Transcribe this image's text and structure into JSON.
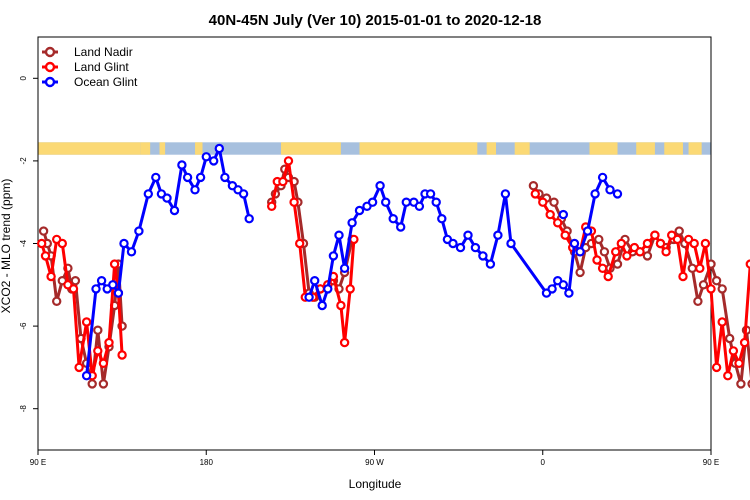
{
  "chart_data": {
    "type": "line",
    "title": "40N-45N July (Ver 10)   2015-01-01 to 2020-12-18",
    "xlabel": "Longitude",
    "ylabel": "XCO2 - MLO trend (ppm)",
    "xlim": [
      90,
      450
    ],
    "ylim": [
      -9,
      1
    ],
    "x_ticks": [
      {
        "value": 90,
        "label": "90 E"
      },
      {
        "value": 180,
        "label": "180"
      },
      {
        "value": 270,
        "label": "90 W"
      },
      {
        "value": 360,
        "label": "0"
      },
      {
        "value": 450,
        "label": "90 E"
      },
      {
        "value": 540,
        "label": "180"
      }
    ],
    "y_ticks": [
      {
        "value": 0,
        "label": "0"
      },
      {
        "value": -2,
        "label": "-2"
      },
      {
        "value": -4,
        "label": "-4"
      },
      {
        "value": -6,
        "label": "-6"
      },
      {
        "value": -8,
        "label": "-8"
      }
    ],
    "grid": false,
    "legend_position": "top-left",
    "land_ocean_band": {
      "y_top": -1.55,
      "y_bottom": -1.85,
      "land_color": "#fbd975",
      "ocean_color": "#a7c0de"
    },
    "series": [
      {
        "name": "Land Nadir",
        "color": "#a52a2a",
        "points": [
          [
            93,
            -3.7
          ],
          [
            95,
            -4.0
          ],
          [
            97,
            -4.3
          ],
          [
            100,
            -5.4
          ],
          [
            103,
            -4.9
          ],
          [
            106,
            -4.6
          ],
          [
            108,
            -5.1
          ],
          [
            110,
            -4.9
          ],
          [
            113,
            -6.3
          ],
          [
            116,
            -6.9
          ],
          [
            119,
            -7.4
          ],
          [
            122,
            -6.1
          ],
          [
            125,
            -7.4
          ],
          [
            128,
            -6.5
          ],
          [
            131,
            -5.5
          ],
          [
            133,
            -4.5
          ],
          [
            135,
            -6.0
          ],
          [
            215,
            -3.0
          ],
          [
            217,
            -2.8
          ],
          [
            220,
            -2.6
          ],
          [
            222,
            -2.2
          ],
          [
            224,
            -2.4
          ],
          [
            227,
            -2.5
          ],
          [
            229,
            -3.0
          ],
          [
            232,
            -4.0
          ],
          [
            235,
            -5.2
          ],
          [
            238,
            -5.3
          ],
          [
            241,
            -5.1
          ],
          [
            245,
            -5.0
          ],
          [
            248,
            -4.9
          ],
          [
            251,
            -5.1
          ],
          [
            254,
            -4.7
          ],
          [
            258,
            -3.9
          ],
          [
            355,
            -2.6
          ],
          [
            358,
            -2.8
          ],
          [
            362,
            -2.9
          ],
          [
            366,
            -3.0
          ],
          [
            370,
            -3.4
          ],
          [
            373,
            -3.7
          ],
          [
            377,
            -4.2
          ],
          [
            380,
            -4.7
          ],
          [
            383,
            -4.1
          ],
          [
            386,
            -4.0
          ],
          [
            390,
            -3.9
          ],
          [
            393,
            -4.2
          ],
          [
            396,
            -4.6
          ],
          [
            400,
            -4.5
          ],
          [
            404,
            -3.9
          ],
          [
            408,
            -4.2
          ],
          [
            412,
            -4.2
          ],
          [
            416,
            -4.3
          ],
          [
            420,
            -3.8
          ],
          [
            423,
            -4.0
          ],
          [
            426,
            -4.1
          ],
          [
            430,
            -3.9
          ],
          [
            433,
            -3.7
          ],
          [
            436,
            -4.0
          ],
          [
            440,
            -4.6
          ],
          [
            443,
            -5.4
          ],
          [
            446,
            -5.0
          ],
          [
            450,
            -4.5
          ],
          [
            453,
            -4.9
          ],
          [
            456,
            -5.1
          ],
          [
            460,
            -6.3
          ],
          [
            463,
            -6.9
          ],
          [
            466,
            -7.4
          ],
          [
            469,
            -6.1
          ],
          [
            472,
            -7.4
          ],
          [
            475,
            -6.5
          ],
          [
            478,
            -5.5
          ],
          [
            481,
            -4.5
          ],
          [
            484,
            -6.0
          ]
        ]
      },
      {
        "name": "Land Glint",
        "color": "#ff0000",
        "points": [
          [
            92,
            -4.0
          ],
          [
            94,
            -4.3
          ],
          [
            97,
            -4.8
          ],
          [
            100,
            -3.9
          ],
          [
            103,
            -4.0
          ],
          [
            106,
            -5.0
          ],
          [
            109,
            -5.1
          ],
          [
            112,
            -7.0
          ],
          [
            116,
            -5.9
          ],
          [
            119,
            -7.2
          ],
          [
            122,
            -6.6
          ],
          [
            125,
            -6.9
          ],
          [
            128,
            -6.4
          ],
          [
            131,
            -4.5
          ],
          [
            133,
            -5.2
          ],
          [
            135,
            -6.7
          ],
          [
            215,
            -3.1
          ],
          [
            218,
            -2.5
          ],
          [
            221,
            -2.5
          ],
          [
            224,
            -2.0
          ],
          [
            227,
            -3.0
          ],
          [
            230,
            -4.0
          ],
          [
            233,
            -5.3
          ],
          [
            237,
            -5.3
          ],
          [
            241,
            -5.1
          ],
          [
            245,
            -5.0
          ],
          [
            248,
            -4.8
          ],
          [
            252,
            -5.5
          ],
          [
            254,
            -6.4
          ],
          [
            257,
            -5.1
          ],
          [
            259,
            -3.9
          ],
          [
            356,
            -2.8
          ],
          [
            360,
            -3.0
          ],
          [
            364,
            -3.3
          ],
          [
            368,
            -3.5
          ],
          [
            372,
            -3.8
          ],
          [
            376,
            -4.1
          ],
          [
            380,
            -4.2
          ],
          [
            383,
            -3.6
          ],
          [
            386,
            -3.7
          ],
          [
            389,
            -4.4
          ],
          [
            392,
            -4.6
          ],
          [
            395,
            -4.8
          ],
          [
            399,
            -4.2
          ],
          [
            402,
            -4.0
          ],
          [
            405,
            -4.3
          ],
          [
            409,
            -4.1
          ],
          [
            412,
            -4.2
          ],
          [
            416,
            -4.0
          ],
          [
            420,
            -3.8
          ],
          [
            423,
            -4.0
          ],
          [
            426,
            -4.2
          ],
          [
            429,
            -3.8
          ],
          [
            432,
            -3.9
          ],
          [
            435,
            -4.8
          ],
          [
            438,
            -3.9
          ],
          [
            441,
            -4.0
          ],
          [
            444,
            -4.6
          ],
          [
            447,
            -4.0
          ],
          [
            450,
            -5.1
          ],
          [
            453,
            -7.0
          ],
          [
            456,
            -5.9
          ],
          [
            459,
            -7.2
          ],
          [
            462,
            -6.6
          ],
          [
            465,
            -6.9
          ],
          [
            468,
            -6.4
          ],
          [
            471,
            -4.5
          ],
          [
            474,
            -5.2
          ],
          [
            477,
            -6.7
          ]
        ]
      },
      {
        "name": "Ocean Glint",
        "color": "#0000ff",
        "points": [
          [
            116,
            -7.2
          ],
          [
            121,
            -5.1
          ],
          [
            124,
            -4.9
          ],
          [
            127,
            -5.1
          ],
          [
            130,
            -5.0
          ],
          [
            133,
            -5.2
          ],
          [
            136,
            -4.0
          ],
          [
            140,
            -4.2
          ],
          [
            144,
            -3.7
          ],
          [
            149,
            -2.8
          ],
          [
            153,
            -2.4
          ],
          [
            156,
            -2.8
          ],
          [
            159,
            -2.9
          ],
          [
            163,
            -3.2
          ],
          [
            167,
            -2.1
          ],
          [
            170,
            -2.4
          ],
          [
            174,
            -2.7
          ],
          [
            177,
            -2.4
          ],
          [
            180,
            -1.9
          ],
          [
            184,
            -2.0
          ],
          [
            187,
            -1.7
          ],
          [
            190,
            -2.4
          ],
          [
            194,
            -2.6
          ],
          [
            197,
            -2.7
          ],
          [
            200,
            -2.8
          ],
          [
            203,
            -3.4
          ],
          [
            235,
            -5.3
          ],
          [
            238,
            -4.9
          ],
          [
            242,
            -5.5
          ],
          [
            245,
            -5.1
          ],
          [
            248,
            -4.3
          ],
          [
            251,
            -3.8
          ],
          [
            254,
            -4.6
          ],
          [
            258,
            -3.5
          ],
          [
            262,
            -3.2
          ],
          [
            266,
            -3.1
          ],
          [
            269,
            -3.0
          ],
          [
            273,
            -2.6
          ],
          [
            276,
            -3.0
          ],
          [
            280,
            -3.4
          ],
          [
            284,
            -3.6
          ],
          [
            287,
            -3.0
          ],
          [
            291,
            -3.0
          ],
          [
            294,
            -3.1
          ],
          [
            297,
            -2.8
          ],
          [
            300,
            -2.8
          ],
          [
            303,
            -3.0
          ],
          [
            306,
            -3.4
          ],
          [
            309,
            -3.9
          ],
          [
            312,
            -4.0
          ],
          [
            316,
            -4.1
          ],
          [
            320,
            -3.8
          ],
          [
            324,
            -4.1
          ],
          [
            328,
            -4.3
          ],
          [
            332,
            -4.5
          ],
          [
            336,
            -3.8
          ],
          [
            340,
            -2.8
          ],
          [
            343,
            -4.0
          ],
          [
            362,
            -5.2
          ],
          [
            365,
            -5.1
          ],
          [
            368,
            -4.9
          ],
          [
            371,
            -5.0
          ],
          [
            374,
            -5.2
          ],
          [
            377,
            -4.0
          ],
          [
            380,
            -4.2
          ],
          [
            384,
            -3.7
          ],
          [
            388,
            -2.8
          ],
          [
            392,
            -2.4
          ],
          [
            396,
            -2.7
          ],
          [
            400,
            -2.8
          ]
        ]
      }
    ],
    "extra_points": [
      {
        "series": "Ocean Glint",
        "x": 371,
        "y": -3.3
      }
    ]
  }
}
